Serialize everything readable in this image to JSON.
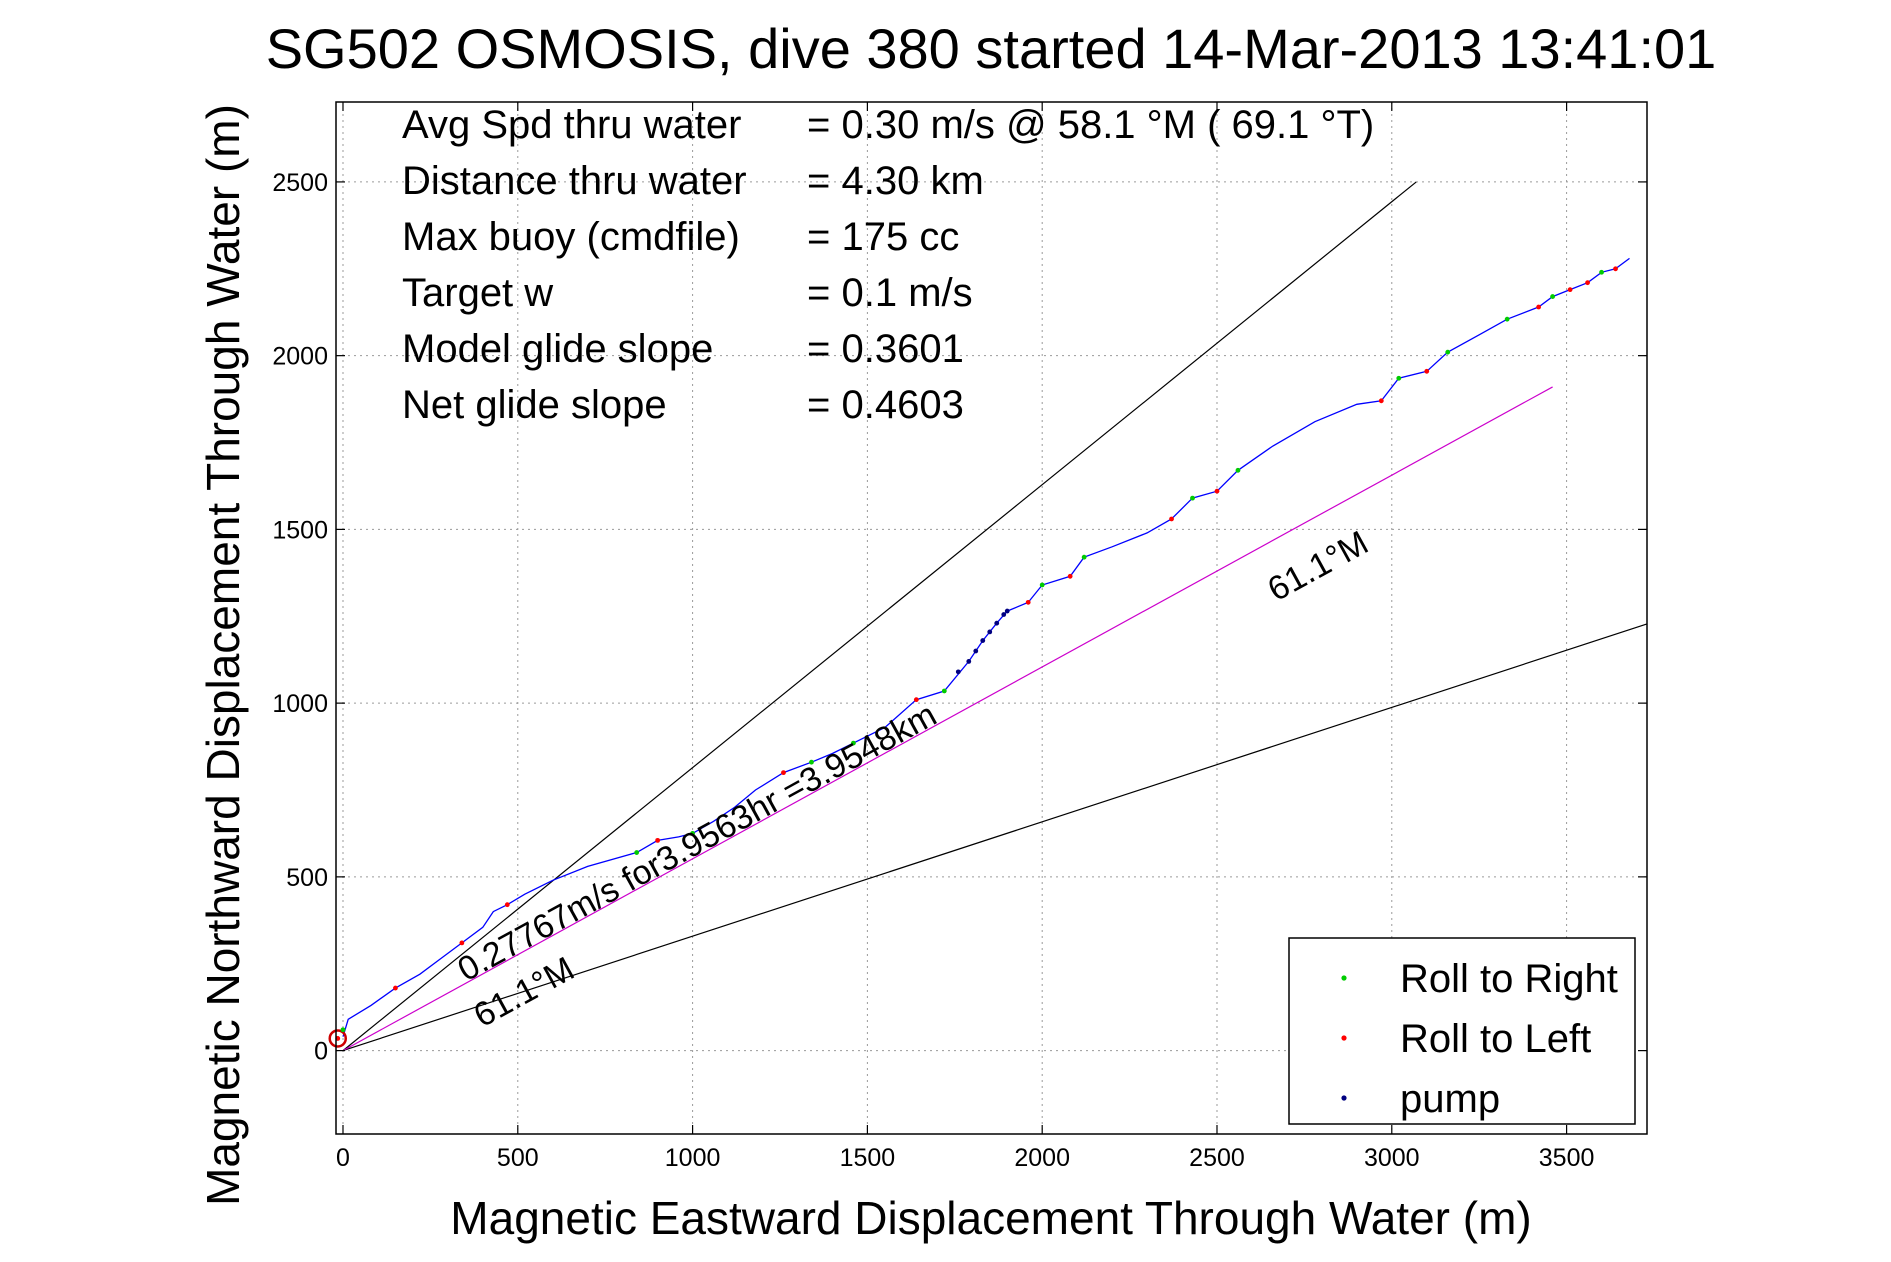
{
  "chart_data": {
    "type": "scatter",
    "title": "SG502 OSMOSIS, dive 380 started 14-Mar-2013 13:41:01",
    "xlabel": "Magnetic Eastward Displacement Through Water (m)",
    "ylabel": "Magnetic Northward Displacement Through Water (m)",
    "xlim": [
      -20,
      3730
    ],
    "ylim": [
      -240,
      2730
    ],
    "xticks": [
      0,
      500,
      1000,
      1500,
      2000,
      2500,
      3000,
      3500
    ],
    "yticks": [
      0,
      500,
      1000,
      1500,
      2000,
      2500
    ],
    "xtick_labels": [
      "0",
      "500",
      "1000",
      "1500",
      "2000",
      "2500",
      "3000",
      "3500"
    ],
    "ytick_labels": [
      "0",
      "500",
      "1000",
      "1500",
      "2000",
      "2500"
    ],
    "grid": true,
    "legend_position": "bottom-right",
    "stats": [
      {
        "label": "Avg Spd thru water",
        "value": "=  0.30 m/s @  58.1 °M ( 69.1 °T)"
      },
      {
        "label": "Distance thru water",
        "value": "=  4.30 km"
      },
      {
        "label": "Max buoy (cmdfile)",
        "value": "= 175 cc"
      },
      {
        "label": "Target w",
        "value": "= 0.1 m/s"
      },
      {
        "label": "Model glide slope",
        "value": "= 0.3601"
      },
      {
        "label": "Net glide slope",
        "value": "= 0.4603"
      }
    ],
    "annotations": {
      "segment_label": "0.27767m/s for3.9563hr =3.9548km",
      "heading_label_1": "61.1°M",
      "heading_label_2": "61.1°M"
    },
    "reference_lines": [
      {
        "from": [
          0,
          0
        ],
        "to": [
          3070,
          2500
        ],
        "color": "#000000"
      },
      {
        "from": [
          0,
          0
        ],
        "to": [
          3730,
          1228
        ],
        "color": "#000000"
      },
      {
        "from": [
          0,
          0
        ],
        "to": [
          3460,
          1910
        ],
        "color": "#cc00cc"
      }
    ],
    "track": {
      "color": "#0000ff",
      "points": [
        [
          0,
          40
        ],
        [
          15,
          90
        ],
        [
          80,
          130
        ],
        [
          150,
          180
        ],
        [
          220,
          220
        ],
        [
          280,
          265
        ],
        [
          340,
          310
        ],
        [
          400,
          355
        ],
        [
          430,
          400
        ],
        [
          470,
          420
        ],
        [
          520,
          450
        ],
        [
          600,
          490
        ],
        [
          700,
          530
        ],
        [
          840,
          570
        ],
        [
          900,
          605
        ],
        [
          960,
          615
        ],
        [
          1000,
          625
        ],
        [
          1060,
          660
        ],
        [
          1120,
          700
        ],
        [
          1180,
          750
        ],
        [
          1260,
          800
        ],
        [
          1340,
          830
        ],
        [
          1400,
          855
        ],
        [
          1460,
          885
        ],
        [
          1550,
          930
        ],
        [
          1640,
          1010
        ],
        [
          1720,
          1035
        ],
        [
          1790,
          1120
        ],
        [
          1830,
          1180
        ],
        [
          1870,
          1230
        ],
        [
          1900,
          1265
        ],
        [
          1960,
          1290
        ],
        [
          2000,
          1340
        ],
        [
          2080,
          1365
        ],
        [
          2120,
          1420
        ],
        [
          2200,
          1450
        ],
        [
          2300,
          1490
        ],
        [
          2370,
          1530
        ],
        [
          2430,
          1590
        ],
        [
          2500,
          1610
        ],
        [
          2560,
          1670
        ],
        [
          2660,
          1740
        ],
        [
          2780,
          1810
        ],
        [
          2900,
          1860
        ],
        [
          2970,
          1870
        ],
        [
          3020,
          1935
        ],
        [
          3100,
          1955
        ],
        [
          3160,
          2010
        ],
        [
          3250,
          2060
        ],
        [
          3330,
          2105
        ],
        [
          3420,
          2140
        ],
        [
          3460,
          2170
        ],
        [
          3510,
          2190
        ],
        [
          3560,
          2210
        ],
        [
          3600,
          2240
        ],
        [
          3640,
          2250
        ],
        [
          3680,
          2280
        ]
      ]
    },
    "series": [
      {
        "name": "Roll to Right",
        "color": "#00cc00",
        "points": [
          [
            0,
            60
          ],
          [
            840,
            570
          ],
          [
            1000,
            625
          ],
          [
            1340,
            830
          ],
          [
            1460,
            885
          ],
          [
            1720,
            1035
          ],
          [
            2000,
            1340
          ],
          [
            2120,
            1420
          ],
          [
            2430,
            1590
          ],
          [
            2560,
            1670
          ],
          [
            3020,
            1935
          ],
          [
            3160,
            2010
          ],
          [
            3330,
            2105
          ],
          [
            3460,
            2170
          ],
          [
            3600,
            2240
          ]
        ]
      },
      {
        "name": "Roll to Left",
        "color": "#ff0000",
        "points": [
          [
            -15,
            35
          ],
          [
            150,
            180
          ],
          [
            340,
            310
          ],
          [
            470,
            420
          ],
          [
            900,
            605
          ],
          [
            1260,
            800
          ],
          [
            1640,
            1010
          ],
          [
            1960,
            1290
          ],
          [
            2080,
            1365
          ],
          [
            2370,
            1530
          ],
          [
            2500,
            1610
          ],
          [
            2970,
            1870
          ],
          [
            3100,
            1955
          ],
          [
            3420,
            2140
          ],
          [
            3510,
            2190
          ],
          [
            3560,
            2210
          ],
          [
            3640,
            2250
          ]
        ]
      },
      {
        "name": "pump",
        "color": "#000080",
        "points": [
          [
            1760,
            1090
          ],
          [
            1790,
            1120
          ],
          [
            1810,
            1150
          ],
          [
            1830,
            1180
          ],
          [
            1850,
            1205
          ],
          [
            1870,
            1230
          ],
          [
            1890,
            1255
          ],
          [
            1900,
            1265
          ]
        ]
      }
    ]
  }
}
